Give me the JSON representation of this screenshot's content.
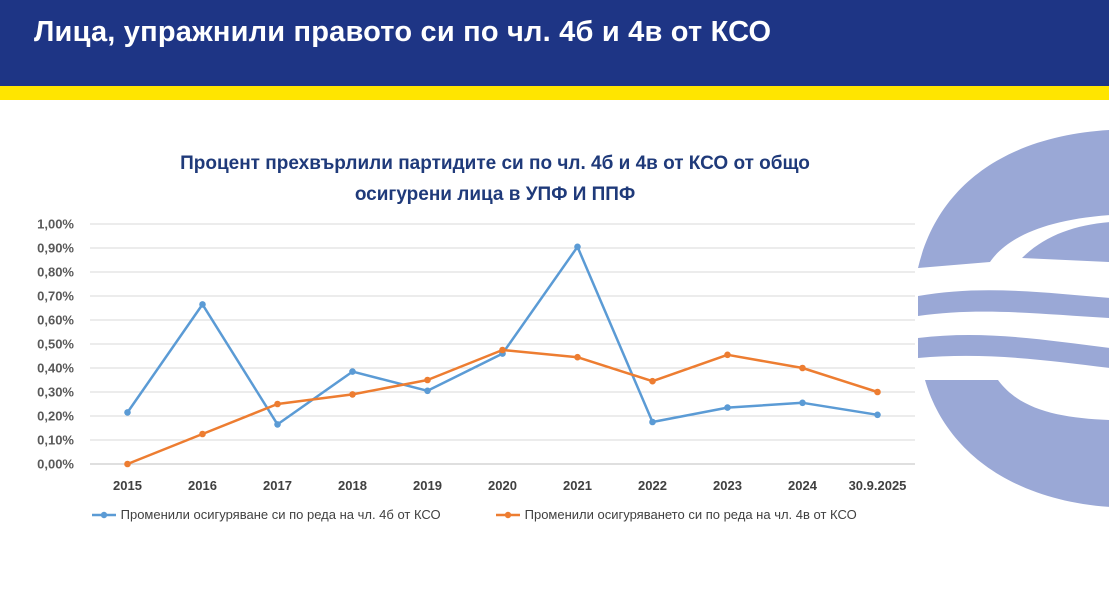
{
  "header": {
    "title": "Лица, упражнили правото си по чл. 4б и 4в от КСО"
  },
  "chart_data": {
    "type": "line",
    "title_lines": [
      "Процент прехвърлили партидите си по чл. 4б и 4в от КСО от общо",
      "осигурени лица в УПФ И ППФ"
    ],
    "categories": [
      "2015",
      "2016",
      "2017",
      "2018",
      "2019",
      "2020",
      "2021",
      "2022",
      "2023",
      "2024",
      "30.9.2025"
    ],
    "y_ticks": [
      "0,00%",
      "0,10%",
      "0,20%",
      "0,30%",
      "0,40%",
      "0,50%",
      "0,60%",
      "0,70%",
      "0,80%",
      "0,90%",
      "1,00%"
    ],
    "ylim": [
      0,
      1.0
    ],
    "grid": true,
    "legend_position": "bottom",
    "series": [
      {
        "name": "Променили осигуряване си по реда на чл. 4б от КСО",
        "color": "#5b9bd5",
        "values": [
          0.215,
          0.665,
          0.165,
          0.385,
          0.305,
          0.46,
          0.905,
          0.175,
          0.235,
          0.255,
          0.205
        ]
      },
      {
        "name": "Променили осигуряването си по реда на чл. 4в от КСО",
        "color": "#ed7d31",
        "values": [
          0.0,
          0.125,
          0.25,
          0.29,
          0.35,
          0.475,
          0.445,
          0.345,
          0.455,
          0.4,
          0.3
        ]
      }
    ]
  },
  "colors": {
    "header_bg": "#1e3585",
    "stripe": "#ffe500",
    "logo": "#9aa8d6",
    "title_text": "#1f3a7a"
  }
}
